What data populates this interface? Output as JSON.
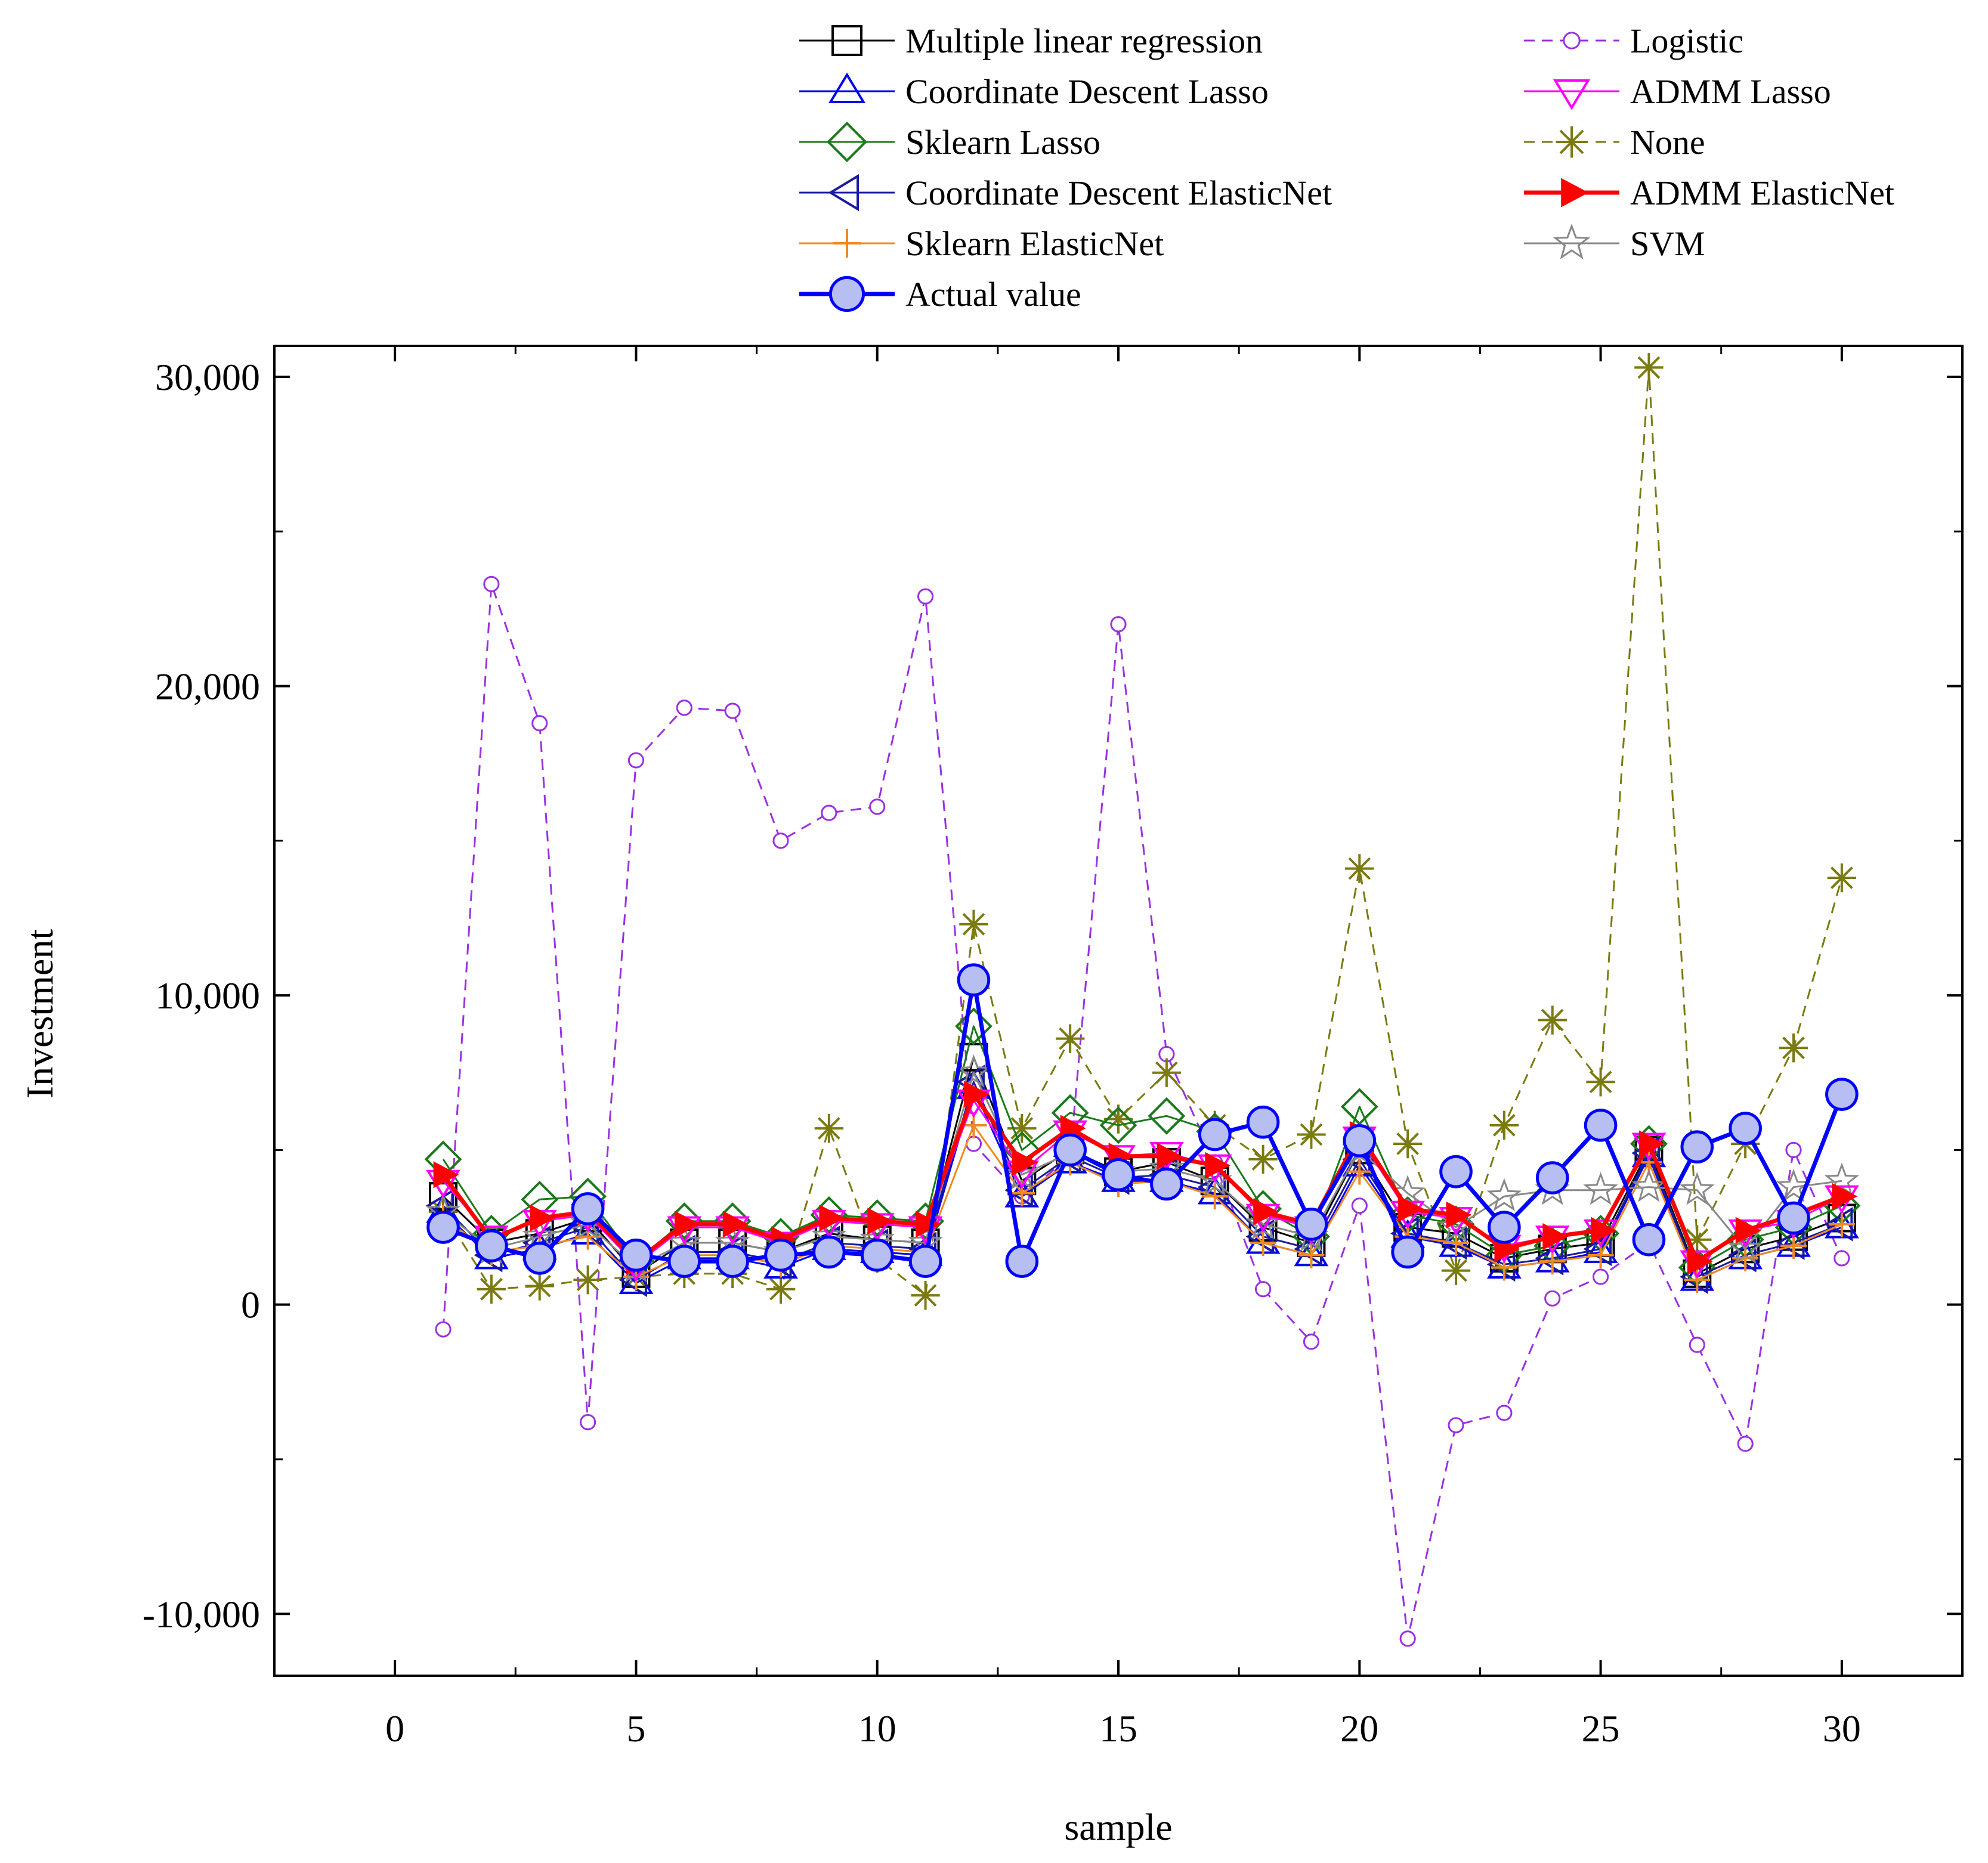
{
  "chart_data": {
    "type": "line",
    "title": "",
    "xlabel": "sample",
    "ylabel": "Investment",
    "xlim": [
      -2.5,
      32.5
    ],
    "ylim": [
      -12000,
      31000
    ],
    "xticks": [
      0,
      5,
      10,
      15,
      20,
      25,
      30
    ],
    "xtick_labels": [
      "0",
      "5",
      "10",
      "15",
      "20",
      "25",
      "30"
    ],
    "yticks": [
      -10000,
      0,
      10000,
      20000,
      30000
    ],
    "ytick_labels": [
      "-10,000",
      "0",
      "10,000",
      "20,000",
      "30,000"
    ],
    "grid": false,
    "legend_position": "top",
    "x": [
      1,
      2,
      3,
      4,
      5,
      6,
      7,
      8,
      9,
      10,
      11,
      12,
      13,
      14,
      15,
      16,
      17,
      18,
      19,
      20,
      21,
      22,
      23,
      24,
      25,
      26,
      27,
      28,
      29,
      30
    ],
    "series": [
      {
        "name": "Multiple linear regression",
        "color": "#000000",
        "dash": "solid",
        "marker": "square",
        "values": [
          3500,
          2000,
          2300,
          2800,
          1000,
          2000,
          2000,
          1700,
          2300,
          2100,
          2000,
          8000,
          4000,
          5000,
          4300,
          4600,
          4000,
          2500,
          2000,
          5000,
          2500,
          2300,
          1500,
          1800,
          2000,
          5000,
          1000,
          1800,
          2200,
          2800
        ]
      },
      {
        "name": "Coordinate Descent Lasso",
        "color": "#0000ee",
        "dash": "solid",
        "marker": "triangle-up",
        "values": [
          3000,
          1500,
          1800,
          2300,
          700,
          1500,
          1500,
          1200,
          1800,
          1700,
          1600,
          7000,
          3500,
          4600,
          4000,
          4000,
          3600,
          2000,
          1600,
          4500,
          2200,
          1900,
          1200,
          1400,
          1700,
          4800,
          800,
          1500,
          1900,
          2500
        ]
      },
      {
        "name": "Sklearn Lasso",
        "color": "#1a7a1a",
        "dash": "solid",
        "marker": "diamond",
        "values": [
          4700,
          2300,
          3400,
          3500,
          1400,
          2700,
          2700,
          2200,
          2900,
          2800,
          2700,
          9000,
          5000,
          6200,
          5800,
          6100,
          5600,
          3100,
          2200,
          6400,
          2900,
          2600,
          1600,
          1900,
          2300,
          5200,
          1200,
          2100,
          2500,
          3200
        ]
      },
      {
        "name": "Coordinate Descent ElasticNet",
        "color": "#1a1aa0",
        "dash": "solid",
        "marker": "triangle-left",
        "values": [
          3200,
          1600,
          2000,
          2500,
          800,
          1700,
          1700,
          1400,
          2000,
          1900,
          1800,
          7200,
          3700,
          4800,
          4100,
          4200,
          3800,
          2200,
          1800,
          4700,
          2300,
          2000,
          1300,
          1500,
          1800,
          4900,
          900,
          1600,
          2000,
          2600
        ]
      },
      {
        "name": "Sklearn ElasticNet",
        "color": "#f08a20",
        "dash": "solid",
        "marker": "plus",
        "values": [
          2800,
          1700,
          1900,
          2200,
          900,
          1600,
          1600,
          1300,
          1900,
          1800,
          1700,
          5800,
          3600,
          4600,
          3900,
          4000,
          3500,
          2000,
          1600,
          4300,
          2200,
          2000,
          1200,
          1400,
          1600,
          4600,
          800,
          1500,
          1900,
          2600
        ]
      },
      {
        "name": "Actual value",
        "color": "#0000ff",
        "dash": "solid",
        "marker": "circle",
        "values": [
          2500,
          1900,
          1500,
          3100,
          1600,
          1400,
          1400,
          1600,
          1700,
          1600,
          1400,
          10500,
          1400,
          5000,
          4200,
          3900,
          5500,
          5900,
          2600,
          5300,
          1700,
          4300,
          2500,
          4100,
          5800,
          2100,
          5100,
          5700,
          2800,
          6800
        ]
      },
      {
        "name": "Logistic",
        "color": "#9b30e0",
        "dash": "dashed",
        "marker": "small-circle",
        "values": [
          -800,
          23300,
          18800,
          -3800,
          17600,
          19300,
          19200,
          15000,
          15900,
          16100,
          22900,
          5200,
          3500,
          4800,
          22000,
          8100,
          4600,
          500,
          -1200,
          3200,
          -10800,
          -3900,
          -3500,
          200,
          900,
          2000,
          -1300,
          -4500,
          5000,
          1500
        ]
      },
      {
        "name": "ADMM Lasso",
        "color": "#ff00ff",
        "dash": "solid",
        "marker": "triangle-down",
        "values": [
          4000,
          2200,
          2700,
          2900,
          1300,
          2500,
          2500,
          2000,
          2700,
          2600,
          2500,
          6600,
          4300,
          5600,
          4800,
          4900,
          4500,
          2900,
          2500,
          5400,
          3000,
          2800,
          1900,
          2200,
          2400,
          5200,
          1400,
          2400,
          2700,
          3500
        ]
      },
      {
        "name": "None",
        "color": "#7a7a10",
        "dash": "dashed",
        "marker": "asterisk",
        "values": [
          3000,
          500,
          600,
          800,
          900,
          1000,
          1000,
          500,
          5700,
          1500,
          300,
          12300,
          5700,
          8600,
          6000,
          7500,
          5800,
          4700,
          5500,
          14100,
          5200,
          1100,
          5800,
          9200,
          7200,
          30300,
          2100,
          5200,
          8300,
          13800
        ]
      },
      {
        "name": "ADMM ElasticNet",
        "color": "#ff0000",
        "dash": "solid",
        "marker": "triangle-right-filled",
        "values": [
          4200,
          2100,
          2800,
          3000,
          1400,
          2600,
          2600,
          2100,
          2800,
          2700,
          2600,
          6800,
          4600,
          5700,
          4800,
          4800,
          4500,
          3000,
          2600,
          5500,
          3100,
          2900,
          1800,
          2200,
          2400,
          5200,
          1400,
          2400,
          2900,
          3500
        ]
      },
      {
        "name": "SVM",
        "color": "#888888",
        "dash": "solid",
        "marker": "star",
        "values": [
          3000,
          1800,
          2200,
          2600,
          1200,
          2000,
          2000,
          1700,
          2200,
          2100,
          2000,
          7500,
          4200,
          4900,
          4300,
          4400,
          4000,
          2600,
          2200,
          5000,
          3600,
          2500,
          3500,
          3700,
          3700,
          3800,
          3700,
          1800,
          3800,
          4000
        ]
      }
    ]
  }
}
